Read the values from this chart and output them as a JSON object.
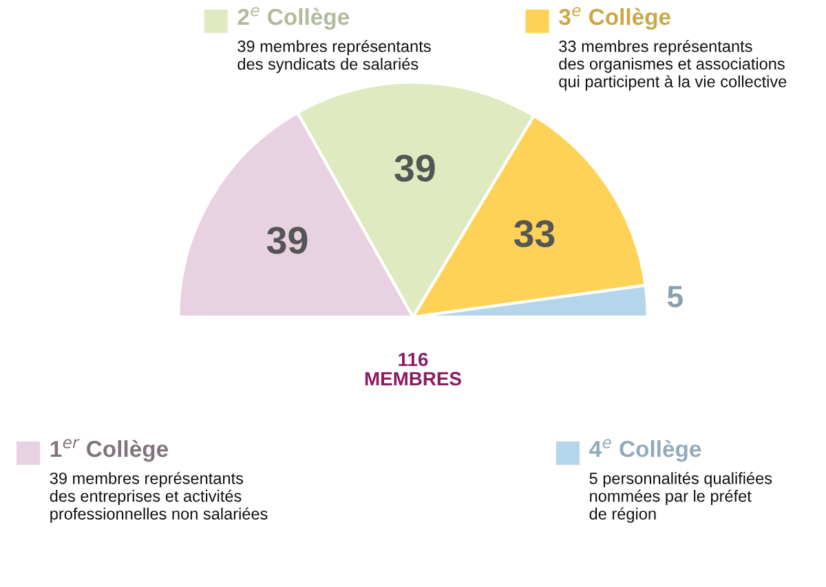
{
  "chart_data": {
    "type": "pie",
    "categories": [
      "1$^{er}$ Collège",
      "2$^{e}$ Collège",
      "3$^{e}$ Collège",
      "4$^{e}$ Collège"
    ],
    "values": [
      39,
      39,
      33,
      5
    ],
    "colors": [
      "#e8d2e2",
      "#dfeac0",
      "#fdd257",
      "#b5d6ea"
    ],
    "data_labels": true,
    "legend": "bottom left",
    "annotations": [
      "39 membres représentants\ndes entreprises et activités\nprofessionnelles non salariées",
      "39 membres représentants\ndes syndicats de salariés",
      "33 membres représentants\ndes organismes et associations\nqui participent à la vie collective",
      "5 personnalités qualifiées\nnommées par le préfet\nde région",
      "116\nMEMBRES"
    ]
  }
}
